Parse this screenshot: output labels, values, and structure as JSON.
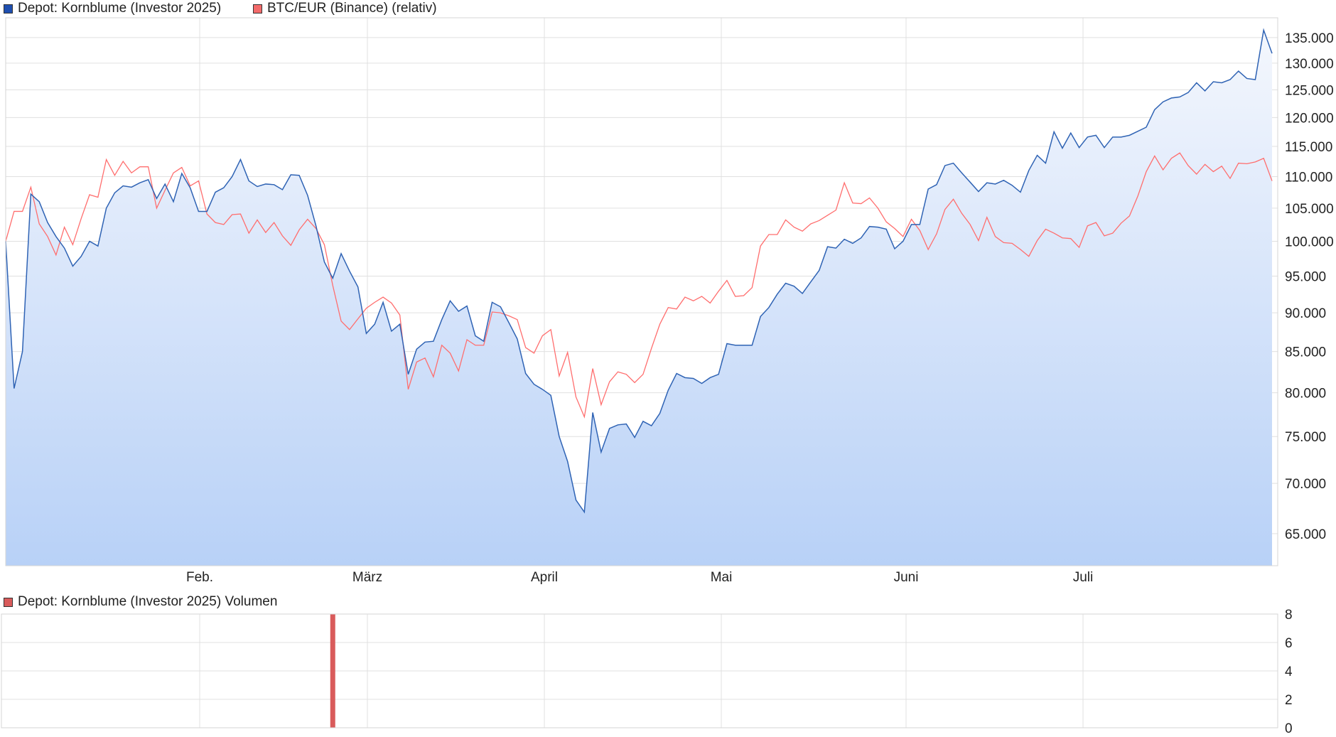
{
  "legend": {
    "main_series_1": "Depot: Kornblume (Investor 2025)",
    "main_series_2": "BTC/EUR (Binance) (relativ)",
    "volume_series": "Depot: Kornblume (Investor 2025) Volumen"
  },
  "colors": {
    "depot_line": "#2f63b4",
    "depot_swatch": "#1f4fb0",
    "btc_line": "#ff6e6e",
    "btc_swatch": "#f36a6a",
    "volume_bar": "#d95b5b",
    "area_top": "#f4f7fd",
    "area_bottom": "#b8d1f7",
    "grid": "#e0e0e0"
  },
  "chart_data": [
    {
      "type": "area",
      "title": "",
      "xlabel": "",
      "ylabel": "",
      "x_ticks": [
        "Feb.",
        "März",
        "April",
        "Mai",
        "Juni",
        "Juli"
      ],
      "y_ticks": [
        "65.000",
        "70.000",
        "75.000",
        "80.000",
        "85.000",
        "90.000",
        "95.000",
        "100.000",
        "105.000",
        "110.000",
        "115.000",
        "120.000",
        "125.000",
        "130.000",
        "135.000"
      ],
      "ylim": [
        62000,
        139000
      ],
      "scale": "log",
      "grid": true,
      "legend": "top-left",
      "series": [
        {
          "name": "Depot: Kornblume (Investor 2025)",
          "values": [
            100000,
            80500,
            85000,
            107200,
            106000,
            102800,
            100700,
            99000,
            96400,
            97800,
            100000,
            99300,
            105000,
            107400,
            108500,
            108300,
            109000,
            109500,
            106500,
            108800,
            106000,
            110500,
            108200,
            104500,
            104500,
            107500,
            108200,
            110000,
            112800,
            109300,
            108400,
            108800,
            108700,
            107900,
            110300,
            110200,
            107000,
            102300,
            97000,
            94700,
            98200,
            95700,
            93500,
            87300,
            88500,
            91400,
            87600,
            88500,
            82200,
            85300,
            86200,
            86300,
            89100,
            91600,
            90200,
            90900,
            87000,
            86300,
            91400,
            90800,
            88700,
            86600,
            82300,
            81000,
            80400,
            79700,
            75000,
            72300,
            68300,
            67100,
            77700,
            73300,
            75900,
            76300,
            76400,
            74900,
            76700,
            76200,
            77600,
            80300,
            82300,
            81800,
            81700,
            81100,
            81800,
            82200,
            86000,
            85800,
            85800,
            85800,
            89500,
            90700,
            92500,
            94000,
            93600,
            92600,
            94200,
            95800,
            99200,
            99000,
            100300,
            99700,
            100500,
            102200,
            102100,
            101800,
            98900,
            100000,
            102500,
            102500,
            108000,
            108700,
            111800,
            112200,
            110600,
            109100,
            107600,
            109000,
            108800,
            109400,
            108600,
            107500,
            111000,
            113500,
            112200,
            117500,
            114700,
            117300,
            114800,
            116600,
            116900,
            114800,
            116600,
            116600,
            116900,
            117600,
            118300,
            121400,
            122800,
            123500,
            123700,
            124500,
            126300,
            124800,
            126500,
            126300,
            126900,
            128500,
            127100,
            126900,
            136500,
            131900
          ]
        },
        {
          "name": "BTC/EUR (Binance) (relativ)",
          "values": [
            100000,
            104500,
            104500,
            108300,
            102600,
            100700,
            98000,
            102100,
            99500,
            103400,
            107100,
            106700,
            112800,
            110200,
            112500,
            110600,
            111600,
            111600,
            105000,
            107800,
            110600,
            111500,
            108500,
            109300,
            104100,
            102800,
            102500,
            104000,
            104100,
            101200,
            103200,
            101300,
            102800,
            100800,
            99400,
            101700,
            103300,
            101900,
            99500,
            93700,
            88900,
            87800,
            89200,
            90600,
            91400,
            92100,
            91300,
            89700,
            80400,
            83700,
            84200,
            81900,
            85800,
            84800,
            82600,
            86500,
            85800,
            85800,
            90100,
            90000,
            89600,
            89100,
            85500,
            84800,
            87000,
            87800,
            82000,
            84900,
            79500,
            77200,
            82900,
            78600,
            81300,
            82500,
            82200,
            81200,
            82200,
            85400,
            88500,
            90700,
            90500,
            92100,
            91600,
            92200,
            91300,
            92900,
            94400,
            92200,
            92300,
            93400,
            99300,
            101000,
            101000,
            103200,
            102100,
            101500,
            102600,
            103100,
            103900,
            104700,
            109000,
            105800,
            105700,
            106600,
            105000,
            102900,
            101900,
            100700,
            103300,
            101600,
            98800,
            101100,
            104800,
            106400,
            104200,
            102500,
            100100,
            103600,
            100700,
            99800,
            99700,
            98800,
            97800,
            100100,
            101800,
            101200,
            100500,
            100400,
            99100,
            102300,
            102800,
            100800,
            101200,
            102700,
            103800,
            106900,
            110800,
            113400,
            111100,
            113000,
            113900,
            111800,
            110400,
            112000,
            110800,
            111700,
            109700,
            112200,
            112100,
            112400,
            113000,
            109300
          ]
        }
      ]
    },
    {
      "type": "bar",
      "title": "",
      "y_ticks": [
        "0",
        "2",
        "4",
        "6",
        "8"
      ],
      "ylim": [
        0,
        8
      ],
      "grid": true,
      "series": [
        {
          "name": "Depot: Kornblume (Investor 2025) Volumen",
          "values": [
            {
              "x_index": 39,
              "value": 8
            }
          ]
        }
      ]
    }
  ]
}
